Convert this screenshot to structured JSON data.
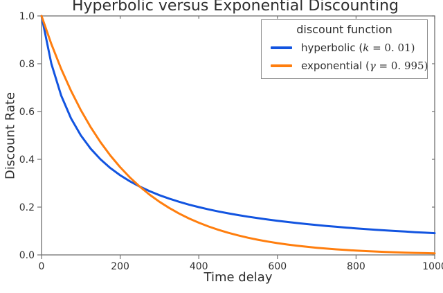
{
  "figure": {
    "background": "#ffffff"
  },
  "chart_data": {
    "type": "line",
    "title": "Hyperbolic versus Exponential Discounting",
    "xlabel": "Time delay",
    "ylabel": "Discount Rate",
    "xlim": [
      0,
      1000
    ],
    "ylim": [
      0.0,
      1.0
    ],
    "x_ticks": [
      0,
      200,
      400,
      600,
      800,
      1000
    ],
    "x_tick_labels": [
      "0",
      "200",
      "400",
      "600",
      "800",
      "1000"
    ],
    "y_ticks": [
      0.0,
      0.2,
      0.4,
      0.6,
      0.8,
      1.0
    ],
    "y_tick_labels": [
      "0.0",
      "0.2",
      "0.4",
      "0.6",
      "0.8",
      "1.0"
    ],
    "grid": false,
    "frame": true,
    "axis_color": "#6f6f6f",
    "text_color": "#303030",
    "legend": {
      "title": "discount function",
      "position": "upper right"
    },
    "x": [
      0,
      25,
      50,
      75,
      100,
      125,
      150,
      175,
      200,
      225,
      250,
      275,
      300,
      325,
      350,
      375,
      400,
      425,
      450,
      475,
      500,
      525,
      550,
      575,
      600,
      625,
      650,
      675,
      700,
      725,
      750,
      775,
      800,
      825,
      850,
      875,
      900,
      925,
      950,
      975,
      1000
    ],
    "series": [
      {
        "key": "hyperbolic",
        "name": "hyperbolic (k = 0.01)",
        "label_prefix": "hyperbolic (",
        "label_symbol": "k",
        "label_suffix": " = 0. 01)",
        "color": "#1254e0",
        "line_width": 3,
        "values": [
          1.0,
          0.8,
          0.6667,
          0.5714,
          0.5,
          0.4444,
          0.4,
          0.3636,
          0.3333,
          0.3077,
          0.2857,
          0.2667,
          0.25,
          0.2353,
          0.2222,
          0.2105,
          0.2,
          0.1905,
          0.1818,
          0.1739,
          0.1667,
          0.16,
          0.1538,
          0.1481,
          0.1429,
          0.1379,
          0.1333,
          0.129,
          0.125,
          0.1212,
          0.1176,
          0.1143,
          0.1111,
          0.1081,
          0.1053,
          0.1026,
          0.1,
          0.0976,
          0.0952,
          0.093,
          0.0909
        ]
      },
      {
        "key": "exponential",
        "name": "exponential (γ = 0.995)",
        "label_prefix": "exponential (",
        "label_symbol": "γ",
        "label_suffix": " = 0. 995)",
        "color": "#ff7e0e",
        "line_width": 3,
        "values": [
          1.0,
          0.8822,
          0.7783,
          0.6866,
          0.6058,
          0.5344,
          0.4715,
          0.416,
          0.367,
          0.3238,
          0.2856,
          0.252,
          0.2223,
          0.1961,
          0.173,
          0.1526,
          0.1347,
          0.1188,
          0.1048,
          0.0925,
          0.0816,
          0.072,
          0.0635,
          0.056,
          0.0494,
          0.0436,
          0.0385,
          0.0339,
          0.0299,
          0.0264,
          0.0233,
          0.0206,
          0.0181,
          0.016,
          0.0141,
          0.0125,
          0.011,
          0.0097,
          0.0085,
          0.0075,
          0.0067
        ]
      }
    ]
  }
}
